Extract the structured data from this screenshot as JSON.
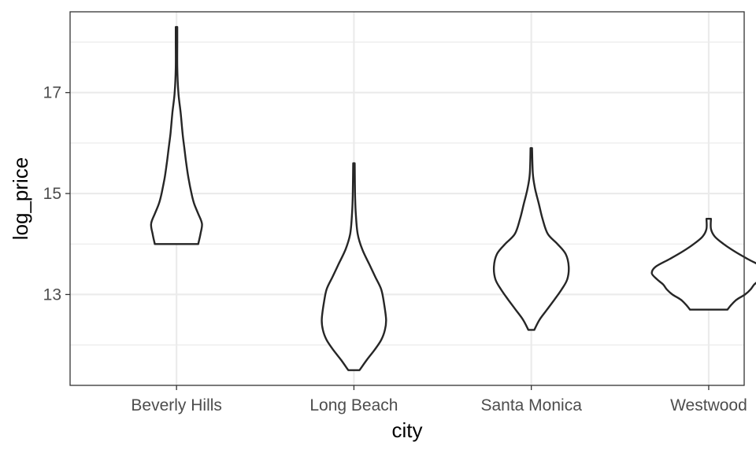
{
  "chart_data": {
    "type": "violin",
    "title": "",
    "xlabel": "city",
    "ylabel": "log_price",
    "categories": [
      "Beverly Hills",
      "Long Beach",
      "Santa Monica",
      "Westwood"
    ],
    "ylim": [
      11.2,
      18.6
    ],
    "y_ticks": [
      13,
      15,
      17
    ],
    "y_tick_labels": [
      "13",
      "15",
      "17"
    ],
    "y_minor_ticks": [
      12,
      14,
      16,
      18
    ],
    "grid": true,
    "legend": "none",
    "colors": {
      "outline": "#262626",
      "grid": "#ebebeb",
      "panel_border": "#333333",
      "fill": "#ffffff"
    },
    "violins": [
      {
        "category": "Beverly Hills",
        "density_profile": [
          [
            14.0,
            0.58
          ],
          [
            14.2,
            0.64
          ],
          [
            14.4,
            0.68
          ],
          [
            14.6,
            0.58
          ],
          [
            14.8,
            0.47
          ],
          [
            15.0,
            0.4
          ],
          [
            15.3,
            0.32
          ],
          [
            15.6,
            0.26
          ],
          [
            15.9,
            0.21
          ],
          [
            16.2,
            0.16
          ],
          [
            16.6,
            0.11
          ],
          [
            17.0,
            0.05
          ],
          [
            17.5,
            0.02
          ],
          [
            18.0,
            0.02
          ],
          [
            18.3,
            0.02
          ]
        ]
      },
      {
        "category": "Long Beach",
        "density_profile": [
          [
            11.5,
            0.15
          ],
          [
            11.7,
            0.34
          ],
          [
            11.9,
            0.55
          ],
          [
            12.1,
            0.73
          ],
          [
            12.3,
            0.83
          ],
          [
            12.5,
            0.86
          ],
          [
            12.8,
            0.81
          ],
          [
            13.1,
            0.73
          ],
          [
            13.35,
            0.57
          ],
          [
            13.6,
            0.41
          ],
          [
            13.9,
            0.22
          ],
          [
            14.2,
            0.1
          ],
          [
            14.6,
            0.05
          ],
          [
            15.0,
            0.03
          ],
          [
            15.6,
            0.02
          ]
        ]
      },
      {
        "category": "Santa Monica",
        "density_profile": [
          [
            12.3,
            0.08
          ],
          [
            12.5,
            0.22
          ],
          [
            12.7,
            0.42
          ],
          [
            12.9,
            0.62
          ],
          [
            13.1,
            0.81
          ],
          [
            13.3,
            0.96
          ],
          [
            13.55,
            1.0
          ],
          [
            13.8,
            0.92
          ],
          [
            14.0,
            0.7
          ],
          [
            14.2,
            0.44
          ],
          [
            14.5,
            0.3
          ],
          [
            14.8,
            0.2
          ],
          [
            15.1,
            0.1
          ],
          [
            15.4,
            0.04
          ],
          [
            15.9,
            0.02
          ]
        ]
      },
      {
        "category": "Westwood",
        "density_profile": [
          [
            12.7,
            0.5
          ],
          [
            12.8,
            0.61
          ],
          [
            12.9,
            0.75
          ],
          [
            13.0,
            0.97
          ],
          [
            13.1,
            1.12
          ],
          [
            13.2,
            1.22
          ],
          [
            13.3,
            1.38
          ],
          [
            13.42,
            1.52
          ],
          [
            13.55,
            1.42
          ],
          [
            13.7,
            1.05
          ],
          [
            13.85,
            0.7
          ],
          [
            14.0,
            0.4
          ],
          [
            14.15,
            0.16
          ],
          [
            14.3,
            0.06
          ],
          [
            14.5,
            0.06
          ]
        ]
      }
    ]
  }
}
